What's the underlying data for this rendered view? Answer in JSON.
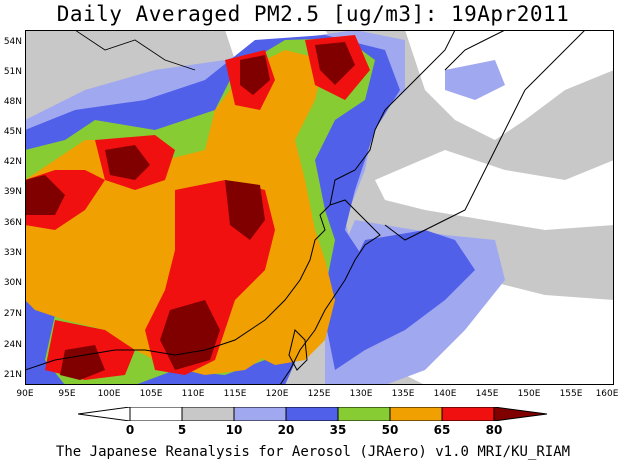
{
  "title": "Daily Averaged PM2.5 [ug/m3]: 19Apr2011",
  "footer": "The Japanese Reanalysis for Aerosol (JRAero) v1.0 MRI/KU_RIAM",
  "map": {
    "lat_labels": [
      "54N",
      "51N",
      "48N",
      "45N",
      "42N",
      "39N",
      "36N",
      "33N",
      "30N",
      "27N",
      "24N",
      "21N"
    ],
    "lon_labels": [
      "90E",
      "95E",
      "100E",
      "105E",
      "110E",
      "115E",
      "120E",
      "125E",
      "130E",
      "135E",
      "140E",
      "145E",
      "150E",
      "155E",
      "160E"
    ],
    "lat_range": [
      20,
      55
    ],
    "lon_range": [
      90,
      160
    ]
  },
  "legend": {
    "levels": [
      "0",
      "5",
      "10",
      "20",
      "35",
      "50",
      "65",
      "80"
    ],
    "colors": [
      "#ffffff",
      "#c8c8c8",
      "#a0a8f0",
      "#5060e8",
      "#88cc33",
      "#f0a000",
      "#f01010",
      "#800000"
    ]
  }
}
